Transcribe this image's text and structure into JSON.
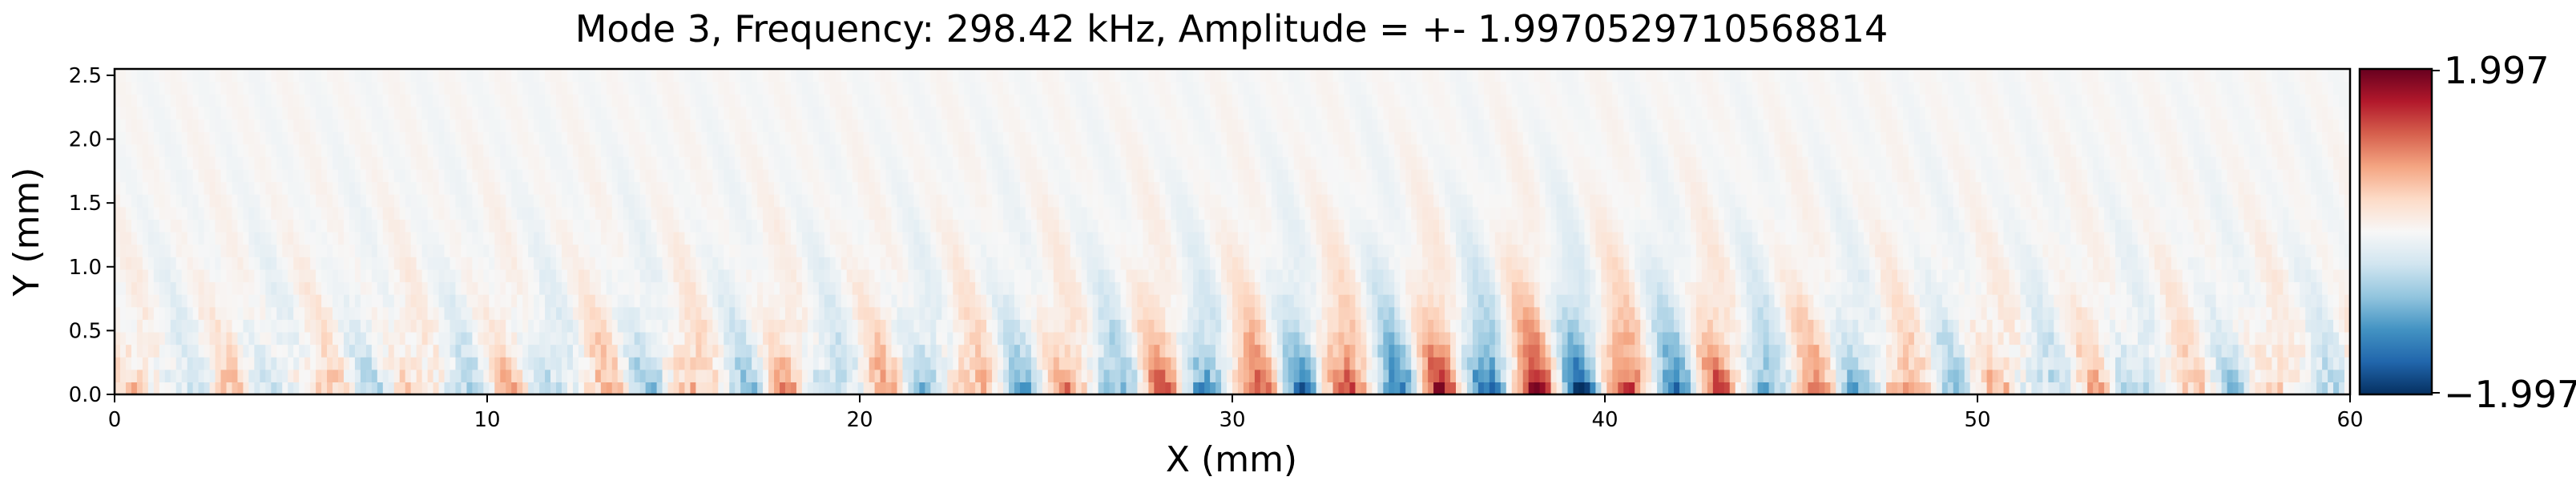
{
  "chart_data": {
    "type": "heatmap",
    "title": "Mode 3, Frequency: 298.42 kHz, Amplitude = +- 1.9970529710568814",
    "xlabel": "X (mm)",
    "ylabel": "Y (mm)",
    "xlim": [
      0,
      60
    ],
    "ylim": [
      0,
      2.55
    ],
    "x_ticks": [
      0,
      10,
      20,
      30,
      40,
      50,
      60
    ],
    "x_tick_labels": [
      "0",
      "10",
      "20",
      "30",
      "40",
      "50",
      "60"
    ],
    "y_ticks": [
      0.0,
      0.5,
      1.0,
      1.5,
      2.0,
      2.5
    ],
    "y_tick_labels": [
      "0.0",
      "0.5",
      "1.0",
      "1.5",
      "2.0",
      "2.5"
    ],
    "colormap": "RdBu_r",
    "vmin": -1.997,
    "vmax": 1.997,
    "colorbar": {
      "max_label": "1.997",
      "min_label": "−1.997",
      "stops": [
        "#053061",
        "#2166ac",
        "#4393c3",
        "#92c5de",
        "#d1e5f0",
        "#f7f7f7",
        "#fddbc7",
        "#f4a582",
        "#d6604d",
        "#b2182b",
        "#67001f"
      ]
    },
    "grid": false,
    "field": {
      "description_of_pattern": "",
      "envelope_x": [
        0,
        10,
        14,
        20,
        25,
        30,
        35,
        38.5,
        42,
        46,
        50,
        55,
        60
      ],
      "envelope_amp": [
        0.45,
        0.55,
        0.8,
        0.75,
        0.95,
        1.35,
        1.65,
        1.95,
        1.5,
        1.0,
        0.7,
        0.6,
        0.55
      ],
      "wavelength_mm": 2.5
    }
  }
}
